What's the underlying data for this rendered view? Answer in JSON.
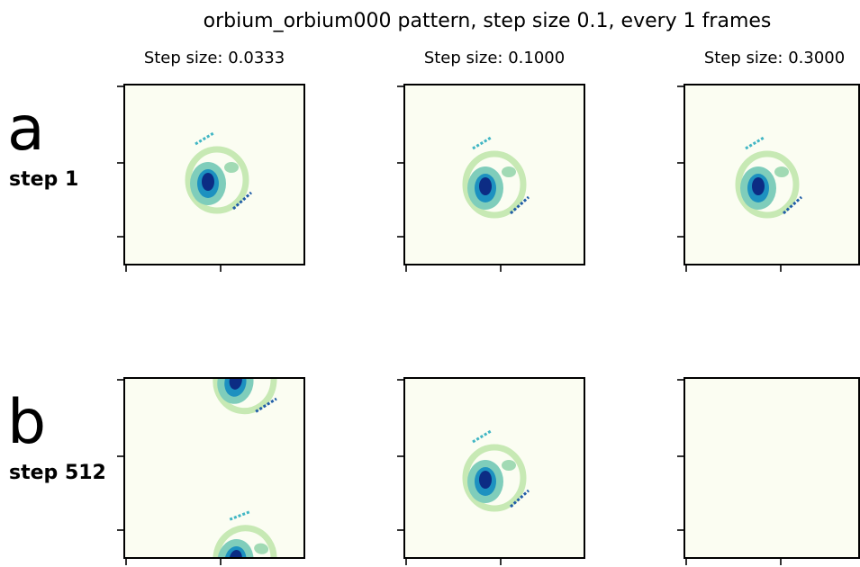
{
  "title": "orbium_orbium000 pattern, step size 0.1, every 1 frames",
  "columns": [
    "Step size: 0.0333",
    "Step size: 0.1000",
    "Step size: 0.3000"
  ],
  "rows": [
    {
      "letter": "a",
      "label": "step 1"
    },
    {
      "letter": "b",
      "label": "step 512"
    }
  ]
}
